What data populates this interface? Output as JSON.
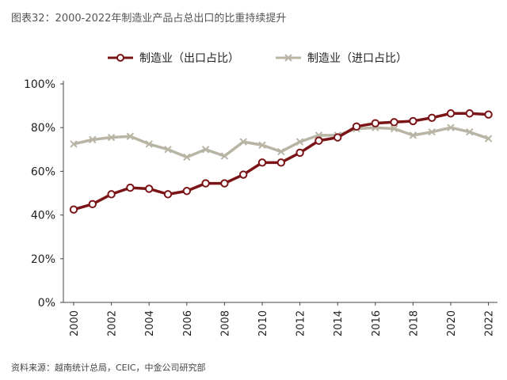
{
  "title": "图表32：2000-2022年制造业产品占总出口的比重持续提升",
  "source": "资料来源：越南统计总局，CEIC，中金公司研究部",
  "chart_data": {
    "type": "line",
    "title": "图表32：2000-2022年制造业产品占总出口的比重持续提升",
    "x": [
      2000,
      2001,
      2002,
      2003,
      2004,
      2005,
      2006,
      2007,
      2008,
      2009,
      2010,
      2011,
      2012,
      2013,
      2014,
      2015,
      2016,
      2017,
      2018,
      2019,
      2020,
      2021,
      2022
    ],
    "xticks": [
      "2000",
      "2002",
      "2004",
      "2006",
      "2008",
      "2010",
      "2012",
      "2014",
      "2016",
      "2018",
      "2020",
      "2022"
    ],
    "yticks": [
      "0%",
      "20%",
      "40%",
      "60%",
      "80%",
      "100%"
    ],
    "ylim": [
      0,
      100
    ],
    "grid": false,
    "legend_position": "top",
    "series": [
      {
        "name": "制造业（出口占比）",
        "color": "#7b1416",
        "marker": "open-circle",
        "values": [
          42.5,
          45,
          49.5,
          52.5,
          52,
          49.5,
          51,
          54.5,
          54.5,
          58.5,
          64,
          64,
          68.5,
          74,
          75.5,
          80.5,
          82,
          82.5,
          83,
          84.5,
          86.5,
          86.5,
          86
        ]
      },
      {
        "name": "制造业（进口占比）",
        "color": "#b8b5a5",
        "marker": "x",
        "values": [
          72.5,
          74.5,
          75.5,
          76,
          72.5,
          70,
          66.5,
          70,
          67,
          73.5,
          72,
          69,
          73.5,
          76.5,
          76.5,
          79.5,
          80,
          79.5,
          76.5,
          78,
          80,
          78,
          75
        ]
      }
    ]
  }
}
